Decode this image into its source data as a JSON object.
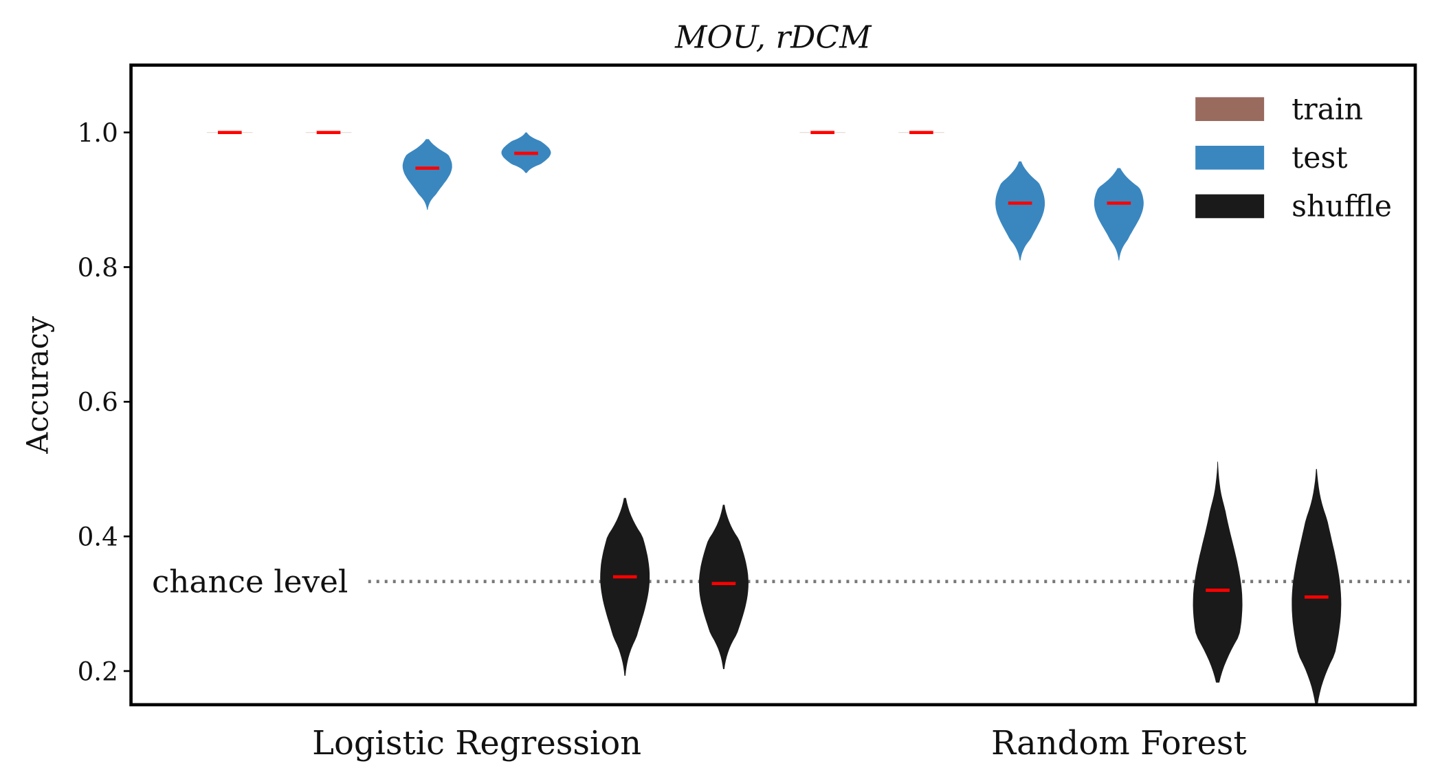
{
  "chart_data": {
    "type": "violin",
    "title": "MOU, rDCM",
    "ylabel": "Accuracy",
    "xlabel": "",
    "ylim": [
      0.15,
      1.1
    ],
    "xlim": [
      0,
      13
    ],
    "yticks": [
      0.2,
      0.4,
      0.6,
      0.8,
      1.0
    ],
    "ytick_labels": [
      "0.2",
      "0.4",
      "0.6",
      "0.8",
      "1.0"
    ],
    "categories": [
      {
        "label": "Logistic Regression",
        "position": 3.5
      },
      {
        "label": "Random Forest",
        "position": 10
      }
    ],
    "grid": false,
    "legend": {
      "placement": "top-right",
      "entries": [
        {
          "label": "train",
          "color": "#996a5e"
        },
        {
          "label": "test",
          "color": "#3a87c0"
        },
        {
          "label": "shuffle",
          "color": "#1a1a1a"
        }
      ]
    },
    "median_color": "#ff0000",
    "chance_level": {
      "value": 0.333,
      "label": "chance level",
      "color": "#777777"
    },
    "violins": [
      {
        "group": "train",
        "position": 1,
        "min": 1.0,
        "max": 1.0,
        "median": 1.0,
        "mode": 1.0
      },
      {
        "group": "train",
        "position": 2,
        "min": 1.0,
        "max": 1.0,
        "median": 1.0,
        "mode": 1.0
      },
      {
        "group": "test",
        "position": 3,
        "min": 0.885,
        "max": 0.99,
        "median": 0.947,
        "mode": 0.95
      },
      {
        "group": "test",
        "position": 4,
        "min": 0.94,
        "max": 1.0,
        "median": 0.969,
        "mode": 0.97
      },
      {
        "group": "shuffle",
        "position": 5,
        "min": 0.193,
        "max": 0.457,
        "median": 0.34,
        "mode": 0.34
      },
      {
        "group": "shuffle",
        "position": 6,
        "min": 0.203,
        "max": 0.447,
        "median": 0.33,
        "mode": 0.33
      },
      {
        "group": "train",
        "position": 7,
        "min": 1.0,
        "max": 1.0,
        "median": 1.0,
        "mode": 1.0
      },
      {
        "group": "train",
        "position": 8,
        "min": 1.0,
        "max": 1.0,
        "median": 1.0,
        "mode": 1.0
      },
      {
        "group": "test",
        "position": 9,
        "min": 0.81,
        "max": 0.957,
        "median": 0.895,
        "mode": 0.895
      },
      {
        "group": "test",
        "position": 10,
        "min": 0.81,
        "max": 0.947,
        "median": 0.895,
        "mode": 0.895
      },
      {
        "group": "shuffle",
        "position": 11,
        "min": 0.183,
        "max": 0.511,
        "median": 0.32,
        "mode": 0.3
      },
      {
        "group": "shuffle",
        "position": 12,
        "min": 0.15,
        "max": 0.5,
        "median": 0.31,
        "mode": 0.3
      }
    ]
  }
}
